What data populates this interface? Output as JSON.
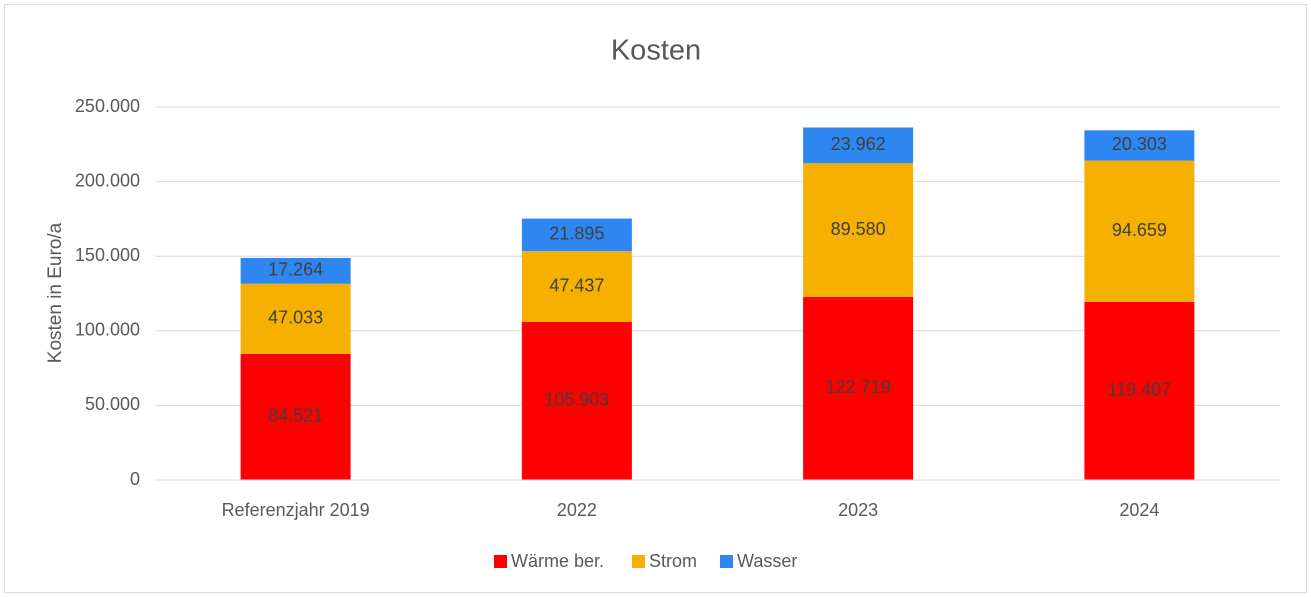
{
  "chart_data": {
    "type": "stacked_bar",
    "title": "Kosten",
    "y_label": "Kosten in Euro/a",
    "categories": [
      "Referenzjahr 2019",
      "2022",
      "2023",
      "2024"
    ],
    "series": [
      {
        "name": "Wärme ber.",
        "color": "#ff0000",
        "values": [
          84521,
          105903,
          122719,
          119407
        ],
        "value_labels": [
          "84.521",
          "105.903",
          "122.719",
          "119.407"
        ]
      },
      {
        "name": "Strom",
        "color": "#f5b000",
        "values": [
          47033,
          47437,
          89580,
          94659
        ],
        "value_labels": [
          "47.033",
          "47.437",
          "89.580",
          "94.659"
        ]
      },
      {
        "name": "Wasser",
        "color": "#2e86f0",
        "values": [
          17264,
          21895,
          23962,
          20303
        ],
        "value_labels": [
          "17.264",
          "21.895",
          "23.962",
          "20.303"
        ]
      }
    ],
    "ylim": [
      0,
      250000
    ],
    "yticks": [
      0,
      {
        "value": 50000,
        "label": "50.000"
      },
      {
        "value": 100000,
        "label": "100.000"
      },
      {
        "value": 150000,
        "label": "150.000"
      },
      {
        "value": 200000,
        "label": "200.000"
      },
      {
        "value": 250000,
        "label": "250.000"
      }
    ],
    "grid": true,
    "legend": "bottom"
  }
}
